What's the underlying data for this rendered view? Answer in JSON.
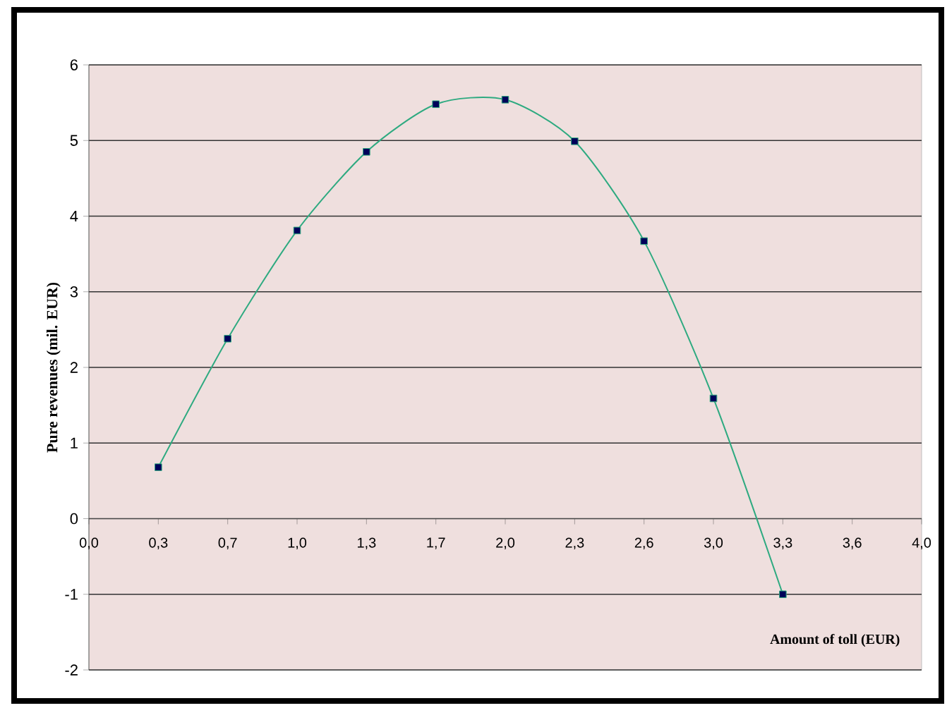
{
  "chart_data": {
    "type": "line",
    "xlabel": "Amount of toll (EUR)",
    "ylabel": "Pure revenues (mil. EUR)",
    "categories": [
      "0,0",
      "0,3",
      "0,7",
      "1,0",
      "1,3",
      "1,7",
      "2,0",
      "2,3",
      "2,6",
      "3,0",
      "3,3",
      "3,6",
      "4,0"
    ],
    "series": [
      {
        "color": "#2eaa80",
        "values": [
          null,
          0.68,
          2.38,
          3.81,
          4.85,
          5.48,
          5.54,
          4.99,
          3.67,
          1.59,
          -1.0,
          null,
          null
        ]
      }
    ],
    "ylim": [
      -2,
      6
    ],
    "yticks": [
      -2,
      -1,
      0,
      1,
      2,
      3,
      4,
      5,
      6
    ],
    "grid": "y",
    "marker": "square"
  }
}
